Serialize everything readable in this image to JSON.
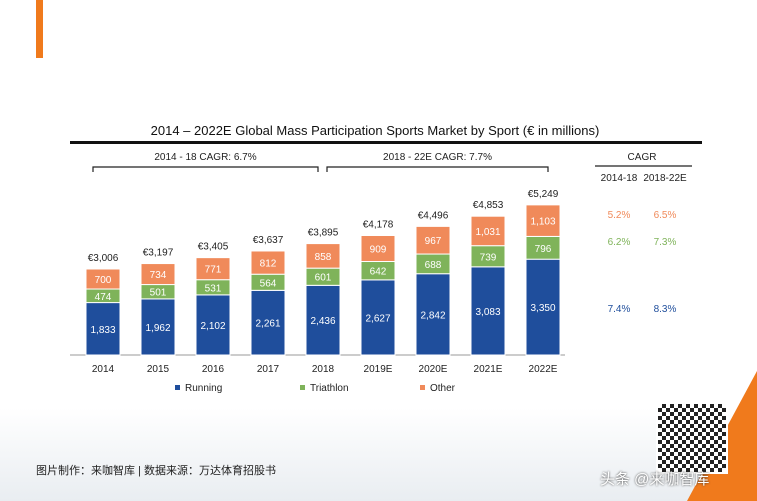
{
  "chart_data": {
    "type": "bar",
    "stacked": true,
    "title": "2014 – 2022E Global Mass Participation Sports Market by Sport (€ in millions)",
    "categories": [
      "2014",
      "2015",
      "2016",
      "2017",
      "2018",
      "2019E",
      "2020E",
      "2021E",
      "2022E"
    ],
    "series": [
      {
        "name": "Running",
        "color": "#1f4e9c",
        "values": [
          1833,
          1962,
          2102,
          2261,
          2436,
          2627,
          2842,
          3083,
          3350
        ]
      },
      {
        "name": "Triathlon",
        "color": "#7fb35a",
        "values": [
          474,
          501,
          531,
          564,
          601,
          642,
          688,
          739,
          796
        ]
      },
      {
        "name": "Other",
        "color": "#f08a5a",
        "values": [
          700,
          734,
          771,
          812,
          858,
          909,
          967,
          1031,
          1103
        ]
      }
    ],
    "totals": [
      "€3,006",
      "€3,197",
      "€3,405",
      "€3,637",
      "€3,895",
      "€4,178",
      "€4,496",
      "€4,853",
      "€5,249"
    ],
    "brackets": [
      {
        "label": "2014 - 18 CAGR: 6.7%"
      },
      {
        "label": "2018 - 22E CAGR: 7.7%"
      }
    ],
    "cagr_table": {
      "header": "CAGR",
      "columns": [
        "2014-18",
        "2018-22E"
      ],
      "rows": [
        {
          "series": "Other",
          "values": [
            "5.2%",
            "6.5%"
          ]
        },
        {
          "series": "Triathlon",
          "values": [
            "6.2%",
            "7.3%"
          ]
        },
        {
          "series": "Running",
          "values": [
            "7.4%",
            "8.3%"
          ]
        }
      ]
    },
    "legend_position": "bottom",
    "grid": false
  },
  "footer": "图片制作：来咖智库 | 数据来源：万达体育招股书",
  "brand": "头条 @来咖智库",
  "accent_color": "#f07a1c"
}
